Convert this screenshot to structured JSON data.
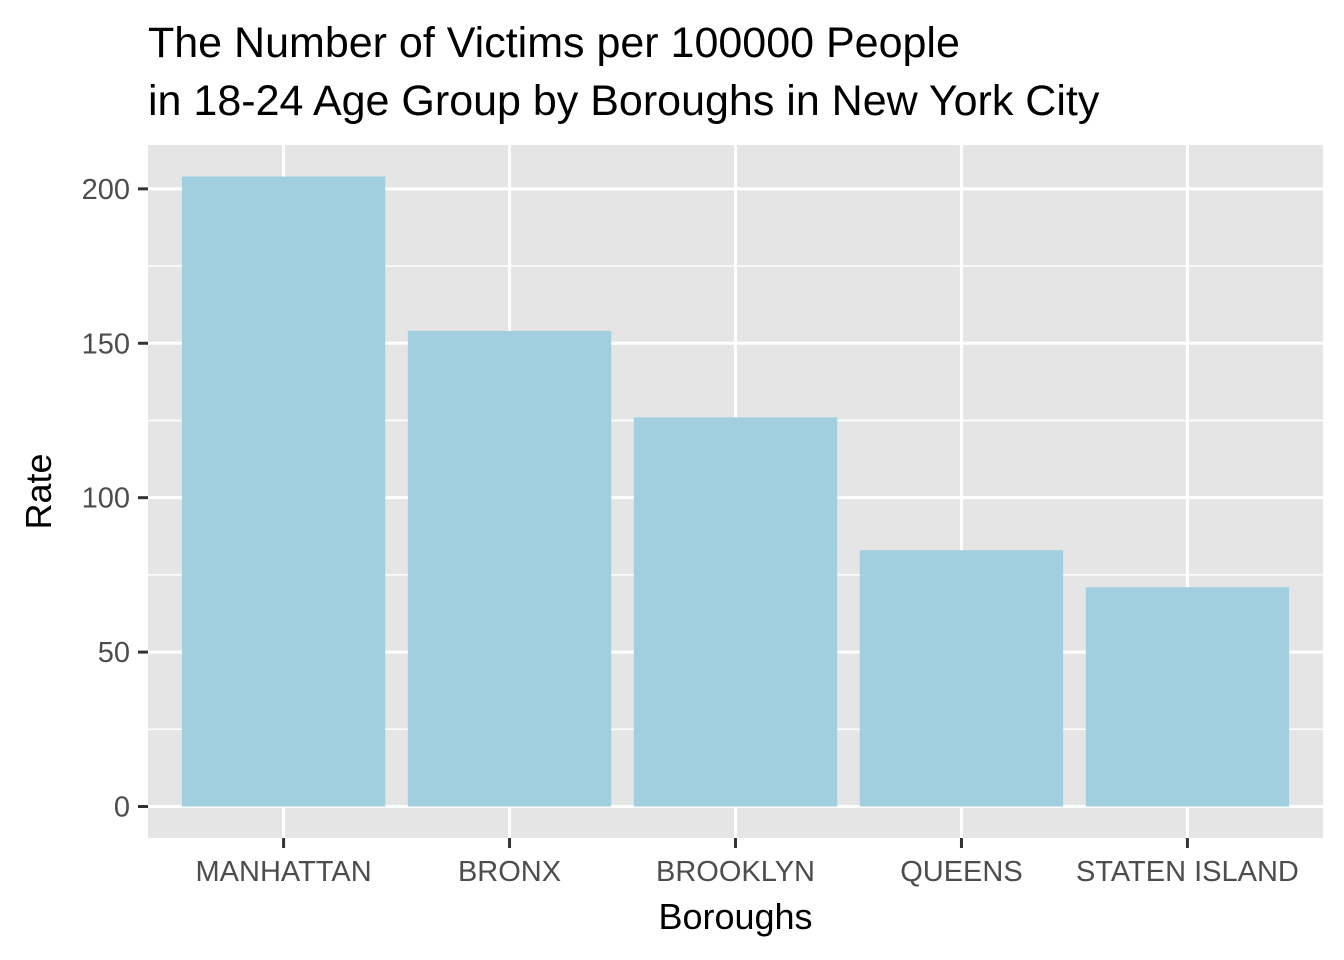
{
  "chart_data": {
    "type": "bar",
    "title_lines": [
      "The Number of Victims per 100000 People",
      "in 18-24 Age Group by Boroughs in New York City"
    ],
    "xlabel": "Boroughs",
    "ylabel": "Rate",
    "categories": [
      "MANHATTAN",
      "BRONX",
      "BROOKLYN",
      "QUEENS",
      "STATEN ISLAND"
    ],
    "values": [
      204,
      154,
      126,
      83,
      71
    ],
    "ylim": [
      -10.2,
      214.2
    ],
    "y_ticks": [
      0,
      50,
      100,
      150,
      200
    ],
    "grid": true,
    "colors": {
      "bar": "#a1cfe0",
      "panel_background": "#e5e5e5",
      "grid": "#ffffff",
      "tick_text": "#4d4d4d",
      "tick_mark": "#333333"
    }
  }
}
